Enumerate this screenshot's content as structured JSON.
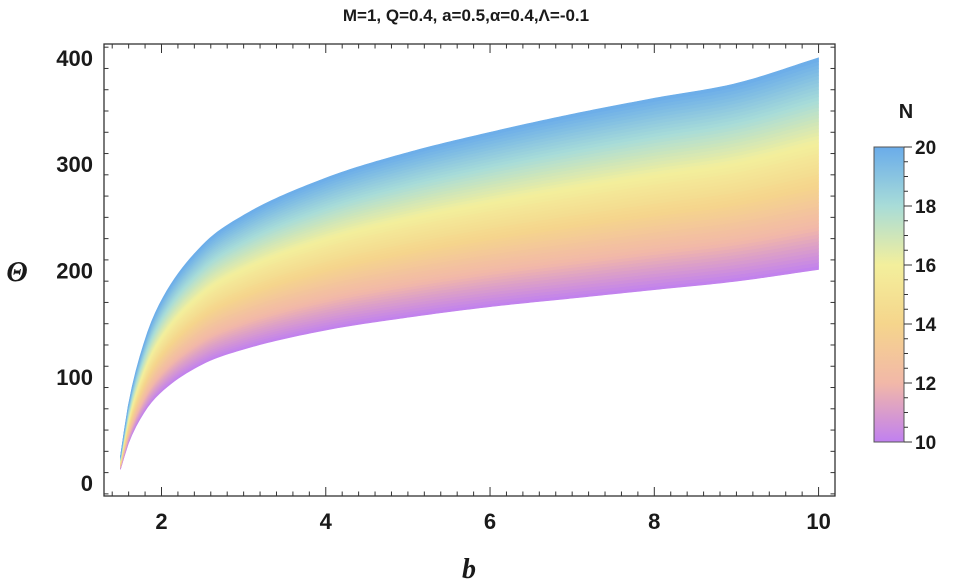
{
  "chart_data": {
    "type": "area",
    "title": "M=1, Q=0.4, a=0.5,α=0.4,Λ=-0.1",
    "xlabel": "b",
    "ylabel": "Θ",
    "xlim": [
      1.3,
      10.2
    ],
    "ylim": [
      -12,
      413
    ],
    "x_ticks": [
      2,
      4,
      6,
      8,
      10
    ],
    "y_ticks": [
      0,
      100,
      200,
      300,
      400
    ],
    "x_tick_labels": [
      "2",
      "4",
      "6",
      "8",
      "10"
    ],
    "y_tick_labels": [
      "0",
      "100",
      "200",
      "300",
      "400"
    ],
    "grid": false,
    "band": {
      "description_note": "",
      "x": [
        1.5,
        1.6,
        1.8,
        2.0,
        2.5,
        3.0,
        4.0,
        5.0,
        6.0,
        7.0,
        8.0,
        9.0,
        10.0
      ],
      "upper_N20": [
        25,
        75,
        135,
        172,
        224,
        252,
        287,
        311,
        330,
        347,
        362,
        376,
        400
      ],
      "lower_N10": [
        13,
        38,
        68,
        86,
        112,
        126,
        144,
        156,
        166,
        174,
        182,
        190,
        201
      ]
    },
    "colorbar": {
      "label": "N",
      "range": [
        10,
        20
      ],
      "ticks": [
        10,
        12,
        14,
        16,
        18,
        20
      ],
      "tick_labels": [
        "10",
        "12",
        "14",
        "16",
        "18",
        "20"
      ],
      "colors": [
        "#c080f0",
        "#f2b8a8",
        "#f5d58c",
        "#f3ef9c",
        "#a8dcd8",
        "#6aacea"
      ]
    }
  }
}
